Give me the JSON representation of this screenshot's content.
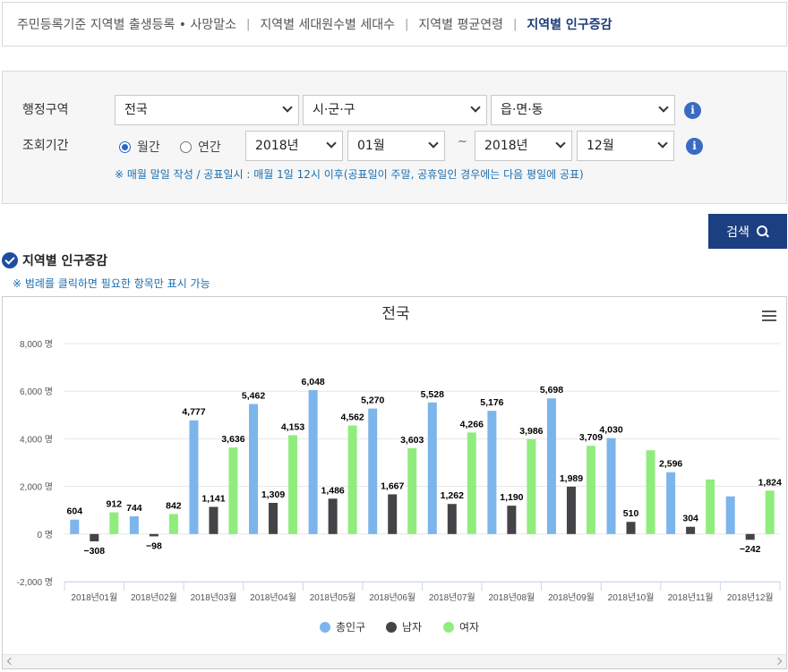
{
  "tabs": [
    {
      "label": "주민등록기준 지역별 출생등록 • 사망말소",
      "active": false
    },
    {
      "label": "지역별 세대원수별 세대수",
      "active": false
    },
    {
      "label": "지역별 평균연령",
      "active": false
    },
    {
      "label": "지역별 인구증감",
      "active": true
    }
  ],
  "filter": {
    "region_label": "행정구역",
    "period_label": "조회기간",
    "sido": "전국",
    "sigungu": "시·군·구",
    "eupmyeondong": "읍·면·동",
    "radio_monthly": "월간",
    "radio_yearly": "연간",
    "selected_period_type": "월간",
    "start_year": "2018년",
    "start_month": "01월",
    "end_year": "2018년",
    "end_month": "12월",
    "range_sep": "~",
    "info_glyph": "i",
    "note": "※ 매월 말일 작성 / 공표일시 : 매월 1일 12시 이후(공표일이 주말, 공휴일인 경우에는 다음 평일에 공표)"
  },
  "search_button": "검색",
  "section": {
    "title": "지역별 인구증감",
    "note": "※ 범례를 클릭하면 필요한 항목만 표시 가능"
  },
  "colors": {
    "total": "#7cb5ec",
    "male": "#434348",
    "female": "#90ed7d",
    "brand": "#1c3f82"
  },
  "chart_data": {
    "type": "bar",
    "title": "전국",
    "categories": [
      "2018년01월",
      "2018년02월",
      "2018년03월",
      "2018년04월",
      "2018년05월",
      "2018년06월",
      "2018년07월",
      "2018년08월",
      "2018년09월",
      "2018년10월",
      "2018년11월",
      "2018년12월"
    ],
    "series": [
      {
        "name": "총인구",
        "values": [
          604,
          744,
          4777,
          5462,
          6048,
          5270,
          5528,
          5176,
          5698,
          4030,
          2596,
          1582
        ],
        "labels": [
          "604",
          "744",
          "4,777",
          "5,462",
          "6,048",
          "5,270",
          "5,528",
          "5,176",
          "5,698",
          "4,030",
          "2,596",
          ""
        ]
      },
      {
        "name": "남자",
        "values": [
          -308,
          -98,
          1141,
          1309,
          1486,
          1667,
          1262,
          1190,
          1989,
          510,
          304,
          -242
        ],
        "labels": [
          "-308",
          "-98",
          "1,141",
          "1,309",
          "1,486",
          "1,667",
          "1,262",
          "1,190",
          "1,989",
          "510",
          "304",
          "-242"
        ]
      },
      {
        "name": "여자",
        "values": [
          912,
          842,
          3636,
          4153,
          4562,
          3603,
          4266,
          3986,
          3709,
          3520,
          2292,
          1824
        ],
        "labels": [
          "912",
          "842",
          "3,636",
          "4,153",
          "4,562",
          "3,603",
          "4,266",
          "3,986",
          "3,709",
          "",
          "",
          "1,824"
        ]
      }
    ],
    "ylim": [
      -2000,
      8000
    ],
    "yticks": [
      "-2,000 명",
      "0 명",
      "2,000 명",
      "4,000 명",
      "6,000 명",
      "8,000 명"
    ],
    "ytick_values": [
      -2000,
      0,
      2000,
      4000,
      6000,
      8000
    ],
    "grid": true,
    "legend": "bottom-center"
  }
}
